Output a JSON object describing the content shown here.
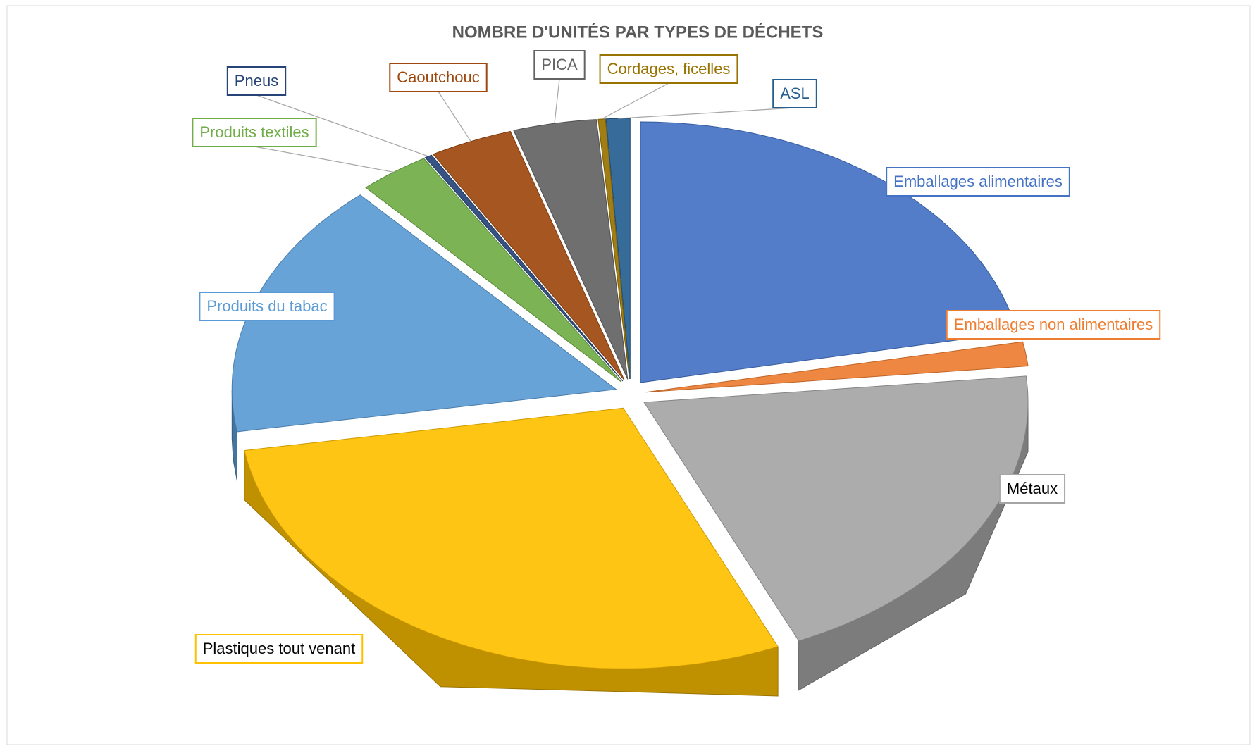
{
  "chart_data": {
    "type": "pie",
    "title": "NOMBRE D'UNITÉS PAR TYPES DE DÉCHETS",
    "categories": [
      "Emballages alimentaires",
      "Emballages non alimentaires",
      "Métaux",
      "Plastiques tout venant",
      "Produits du tabac",
      "Produits textiles",
      "Pneus",
      "Caoutchouc",
      "PICA",
      "Cordages, ficelles",
      "ASL"
    ],
    "values": [
      21.9,
      1.5,
      20,
      29,
      16,
      3,
      0.3,
      3.5,
      3.5,
      0.3,
      1
    ],
    "colors": [
      "#4472c4",
      "#ed7d31",
      "#a5a5a5",
      "#ffc000",
      "#5b9bd5",
      "#70ad47",
      "#264478",
      "#9e480e",
      "#636363",
      "#997300",
      "#255e91"
    ],
    "label_text_colors": [
      "#4472c4",
      "#ed7d31",
      "#000000",
      "#000000",
      "#5b9bd5",
      "#70ad47",
      "#264478",
      "#9e480e",
      "#636363",
      "#997300",
      "#255e91"
    ]
  }
}
